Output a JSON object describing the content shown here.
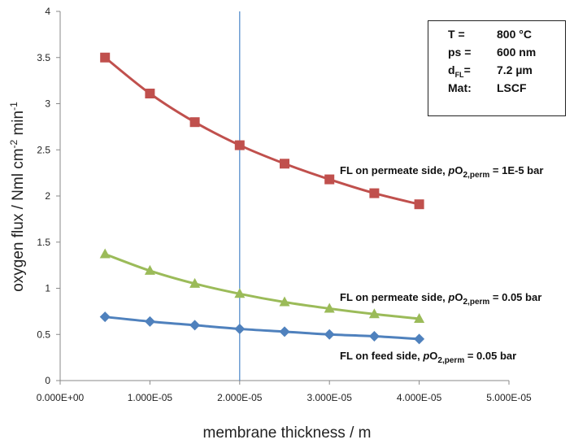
{
  "chart_data": {
    "type": "line",
    "xlabel": "membrane thickness / m",
    "ylabel_parts": {
      "a": "oxygen flux / Nml cm",
      "b": "-2",
      "c": " min",
      "d": "-1"
    },
    "xlim": [
      0,
      5e-05
    ],
    "ylim": [
      0,
      4
    ],
    "x_ticks": [
      0,
      1e-05,
      2e-05,
      3e-05,
      4e-05,
      5e-05
    ],
    "x_tick_labels": [
      "0.000E+00",
      "1.000E-05",
      "2.000E-05",
      "3.000E-05",
      "4.000E-05",
      "5.000E-05"
    ],
    "y_ticks": [
      0,
      0.5,
      1,
      1.5,
      2,
      2.5,
      3,
      3.5,
      4
    ],
    "y_tick_labels": [
      "0",
      "0.5",
      "1",
      "1.5",
      "2",
      "2.5",
      "3",
      "3.5",
      "4"
    ],
    "grid": false,
    "vertical_line_x": 2e-05,
    "vertical_line_color": "#4a86c8",
    "x": [
      5e-06,
      1e-05,
      1.5e-05,
      2e-05,
      2.5e-05,
      3e-05,
      3.5e-05,
      4e-05
    ],
    "series": [
      {
        "marker": "square",
        "color": "#c0504d",
        "values": [
          3.5,
          3.11,
          2.8,
          2.55,
          2.35,
          2.18,
          2.03,
          1.91
        ]
      },
      {
        "marker": "triangle",
        "color": "#9bbb59",
        "values": [
          1.37,
          1.19,
          1.05,
          0.94,
          0.85,
          0.78,
          0.72,
          0.67
        ]
      },
      {
        "marker": "diamond",
        "color": "#4f81bd",
        "values": [
          0.69,
          0.64,
          0.6,
          0.56,
          0.53,
          0.5,
          0.48,
          0.45
        ]
      }
    ],
    "annotations": [
      {
        "pre": "FL on permeate side, ",
        "italic": "p",
        "o": "O",
        "sub": "2,perm",
        "post": " = 1E-5 bar"
      },
      {
        "pre": "FL on permeate side,  ",
        "italic": "p",
        "o": "O",
        "sub": "2,perm",
        "post": " = 0.05 bar"
      },
      {
        "pre": "FL on feed side, ",
        "italic": "p",
        "o": "O",
        "sub": "2,perm",
        "post": " = 0.05 bar"
      }
    ],
    "info_box": [
      {
        "key": "T =",
        "value": "800 °C"
      },
      {
        "key": "ps =",
        "value": "600 nm"
      },
      {
        "key_main": "d",
        "key_sub": "FL",
        "key_tail": "=",
        "value": "7.2 µm"
      },
      {
        "key": "Mat:",
        "value": "LSCF"
      }
    ]
  }
}
